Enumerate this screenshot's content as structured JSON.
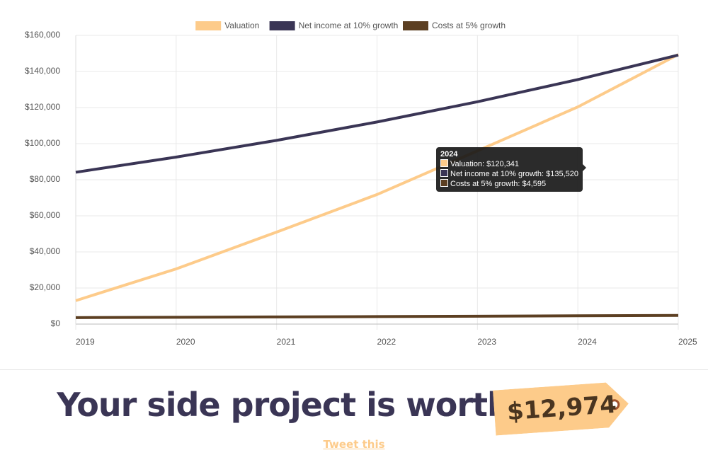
{
  "chart_data": {
    "type": "line",
    "categories": [
      "2019",
      "2020",
      "2021",
      "2022",
      "2023",
      "2024",
      "2025"
    ],
    "series": [
      {
        "name": "Valuation",
        "color": "#fdcb8a",
        "values": [
          13000,
          30600,
          51000,
          71800,
          96000,
          120341,
          149400
        ]
      },
      {
        "name": "Net income at 10% growth",
        "color": "#3a3555",
        "values": [
          84148,
          92563,
          101819,
          112000,
          123200,
          135520,
          149072
        ]
      },
      {
        "name": "Costs at 5% growth",
        "color": "#5c3f22",
        "values": [
          3600,
          3780,
          3969,
          4168,
          4376,
          4595,
          4825
        ]
      }
    ],
    "ylim": [
      0,
      160000
    ],
    "yticks": [
      {
        "value": 0,
        "label": "$0"
      },
      {
        "value": 20000,
        "label": "$20,000"
      },
      {
        "value": 40000,
        "label": "$40,000"
      },
      {
        "value": 60000,
        "label": "$60,000"
      },
      {
        "value": 80000,
        "label": "$80,000"
      },
      {
        "value": 100000,
        "label": "$100,000"
      },
      {
        "value": 120000,
        "label": "$120,000"
      },
      {
        "value": 140000,
        "label": "$140,000"
      },
      {
        "value": 160000,
        "label": "$160,000"
      }
    ],
    "grid": true,
    "legend": "top"
  },
  "tooltip": {
    "title": "2024",
    "items": [
      "Valuation: $120,341",
      "Net income at 10% growth: $135,520",
      "Costs at 5% growth: $4,595"
    ]
  },
  "headline": "Your side project is worth",
  "price": "$12,974",
  "link": "Tweet this"
}
